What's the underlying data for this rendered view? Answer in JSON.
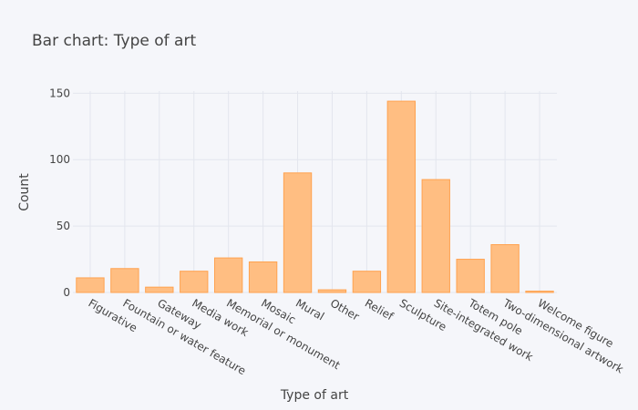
{
  "chart_data": {
    "type": "bar",
    "title": "Bar chart: Type of art",
    "xlabel": "Type of art",
    "ylabel": "Count",
    "categories": [
      "Figurative",
      "Fountain or water feature",
      "Gateway",
      "Media work",
      "Memorial or monument",
      "Mosaic",
      "Mural",
      "Other",
      "Relief",
      "Sculpture",
      "Site-integrated work",
      "Totem pole",
      "Two-dimensional artwork",
      "Welcome figure"
    ],
    "values": [
      11,
      18,
      4,
      16,
      26,
      23,
      90,
      2,
      16,
      144,
      85,
      25,
      36,
      1
    ],
    "ylim": [
      0,
      151.6
    ],
    "yticks": [
      0,
      50,
      100,
      150
    ],
    "grid": true,
    "colors": {
      "bar_fill": "#ffbe82",
      "bar_stroke": "#ffa24f",
      "background": "#f5f6fa",
      "grid": "#e3e6ee"
    }
  }
}
